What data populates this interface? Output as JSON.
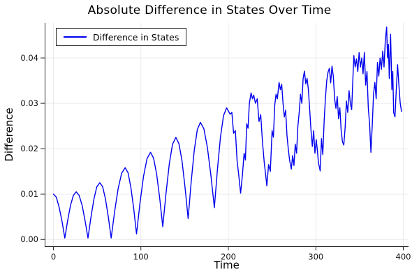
{
  "chart": {
    "title": "Absolute Difference in States Over Time",
    "legend": {
      "items": [
        {
          "label": "Difference in States",
          "color": "#0000ee"
        }
      ]
    }
  },
  "chart_data": {
    "type": "line",
    "title": "Absolute Difference in States Over Time",
    "xlabel": "Time",
    "ylabel": "Difference",
    "xlim": [
      -10,
      406
    ],
    "ylim": [
      -0.0015,
      0.0477
    ],
    "grid": true,
    "legend_position": "top-left",
    "xticks": {
      "values": [
        0,
        100,
        200,
        300,
        400
      ],
      "labels": [
        "0",
        "100",
        "200",
        "300",
        "400"
      ]
    },
    "yticks": {
      "values": [
        0,
        0.01,
        0.02,
        0.03,
        0.04
      ],
      "labels": [
        "0.00",
        "0.01",
        "0.02",
        "0.03",
        "0.04"
      ]
    },
    "series": [
      {
        "name": "Difference in States",
        "color": "#0000ee",
        "points": [
          [
            0,
            0.01
          ],
          [
            3.3,
            0.0093
          ],
          [
            6.5,
            0.0071
          ],
          [
            9.8,
            0.004
          ],
          [
            13,
            0.0003
          ],
          [
            16.3,
            0.0042
          ],
          [
            19.5,
            0.0075
          ],
          [
            22.8,
            0.0097
          ],
          [
            26,
            0.0105
          ],
          [
            29.4,
            0.0097
          ],
          [
            32.8,
            0.0075
          ],
          [
            36.1,
            0.0042
          ],
          [
            39.5,
            0.0003
          ],
          [
            42.9,
            0.0049
          ],
          [
            46.3,
            0.0089
          ],
          [
            49.6,
            0.0116
          ],
          [
            53,
            0.0125
          ],
          [
            56.3,
            0.0116
          ],
          [
            59.5,
            0.0089
          ],
          [
            62.8,
            0.0049
          ],
          [
            66,
            0.0003
          ],
          [
            70,
            0.0062
          ],
          [
            74,
            0.0112
          ],
          [
            78,
            0.0146
          ],
          [
            82,
            0.0158
          ],
          [
            85.3,
            0.0147
          ],
          [
            88.5,
            0.0115
          ],
          [
            91.8,
            0.0068
          ],
          [
            95,
            0.0012
          ],
          [
            99,
            0.0081
          ],
          [
            103,
            0.0139
          ],
          [
            107,
            0.0178
          ],
          [
            111,
            0.0192
          ],
          [
            114.5,
            0.0179
          ],
          [
            118,
            0.0144
          ],
          [
            121.5,
            0.0091
          ],
          [
            125,
            0.0028
          ],
          [
            128.8,
            0.0103
          ],
          [
            132.5,
            0.0167
          ],
          [
            136.2,
            0.021
          ],
          [
            140,
            0.0225
          ],
          [
            143.5,
            0.0211
          ],
          [
            147,
            0.0173
          ],
          [
            150.5,
            0.0114
          ],
          [
            154,
            0.0046
          ],
          [
            157.5,
            0.0127
          ],
          [
            161,
            0.0196
          ],
          [
            164.5,
            0.0242
          ],
          [
            168,
            0.0258
          ],
          [
            172,
            0.0244
          ],
          [
            176,
            0.0203
          ],
          [
            180,
            0.0142
          ],
          [
            184,
            0.007
          ],
          [
            187.5,
            0.0154
          ],
          [
            191,
            0.0226
          ],
          [
            194.5,
            0.0273
          ],
          [
            198,
            0.029
          ],
          [
            202,
            0.0276
          ],
          [
            204,
            0.028
          ],
          [
            206,
            0.0234
          ],
          [
            208,
            0.024
          ],
          [
            210,
            0.0173
          ],
          [
            212,
            0.014
          ],
          [
            214,
            0.0102
          ],
          [
            216,
            0.014
          ],
          [
            218,
            0.019
          ],
          [
            219.5,
            0.0175
          ],
          [
            221,
            0.0255
          ],
          [
            222.5,
            0.0245
          ],
          [
            224,
            0.03
          ],
          [
            226,
            0.0323
          ],
          [
            227.5,
            0.031
          ],
          [
            229,
            0.0318
          ],
          [
            231,
            0.03
          ],
          [
            233,
            0.031
          ],
          [
            235,
            0.026
          ],
          [
            237,
            0.0275
          ],
          [
            239,
            0.0215
          ],
          [
            241,
            0.017
          ],
          [
            242.5,
            0.0145
          ],
          [
            244,
            0.0118
          ],
          [
            246,
            0.0165
          ],
          [
            248,
            0.015
          ],
          [
            250,
            0.024
          ],
          [
            251.5,
            0.0225
          ],
          [
            253,
            0.0295
          ],
          [
            254.5,
            0.032
          ],
          [
            256,
            0.031
          ],
          [
            258,
            0.0346
          ],
          [
            259.5,
            0.033
          ],
          [
            261,
            0.0342
          ],
          [
            262.5,
            0.03
          ],
          [
            264,
            0.027
          ],
          [
            265.5,
            0.0285
          ],
          [
            267,
            0.023
          ],
          [
            268.5,
            0.02
          ],
          [
            270,
            0.0175
          ],
          [
            272,
            0.0155
          ],
          [
            273.5,
            0.0185
          ],
          [
            275,
            0.0163
          ],
          [
            276.5,
            0.021
          ],
          [
            278,
            0.019
          ],
          [
            279.5,
            0.025
          ],
          [
            281,
            0.028
          ],
          [
            282.5,
            0.032
          ],
          [
            284,
            0.03
          ],
          [
            285.5,
            0.0355
          ],
          [
            287,
            0.0371
          ],
          [
            288.5,
            0.0343
          ],
          [
            290,
            0.0355
          ],
          [
            291.5,
            0.033
          ],
          [
            293,
            0.0286
          ],
          [
            294.5,
            0.024
          ],
          [
            296,
            0.0205
          ],
          [
            297.5,
            0.024
          ],
          [
            299,
            0.019
          ],
          [
            300.5,
            0.022
          ],
          [
            302,
            0.0192
          ],
          [
            303,
            0.0169
          ],
          [
            305,
            0.0151
          ],
          [
            306.5,
            0.0222
          ],
          [
            308,
            0.0187
          ],
          [
            309.5,
            0.026
          ],
          [
            311,
            0.0312
          ],
          [
            312.5,
            0.035
          ],
          [
            314,
            0.0369
          ],
          [
            315.5,
            0.0377
          ],
          [
            317,
            0.0345
          ],
          [
            318.5,
            0.0382
          ],
          [
            320,
            0.036
          ],
          [
            321.5,
            0.031
          ],
          [
            323,
            0.0289
          ],
          [
            324.5,
            0.0315
          ],
          [
            326,
            0.0266
          ],
          [
            327.5,
            0.029
          ],
          [
            329,
            0.024
          ],
          [
            330.5,
            0.0215
          ],
          [
            332,
            0.0208
          ],
          [
            333.5,
            0.0246
          ],
          [
            335,
            0.0305
          ],
          [
            336.5,
            0.028
          ],
          [
            338,
            0.0328
          ],
          [
            339.5,
            0.03
          ],
          [
            341,
            0.0286
          ],
          [
            342.5,
            0.036
          ],
          [
            343.5,
            0.0405
          ],
          [
            345,
            0.038
          ],
          [
            346.5,
            0.0398
          ],
          [
            348,
            0.037
          ],
          [
            349.5,
            0.0412
          ],
          [
            351,
            0.038
          ],
          [
            352.5,
            0.04
          ],
          [
            354,
            0.0365
          ],
          [
            355.5,
            0.0412
          ],
          [
            357,
            0.034
          ],
          [
            358.5,
            0.037
          ],
          [
            360,
            0.029
          ],
          [
            361.5,
            0.0254
          ],
          [
            363,
            0.0192
          ],
          [
            364.5,
            0.0251
          ],
          [
            366,
            0.032
          ],
          [
            367.5,
            0.0346
          ],
          [
            369,
            0.031
          ],
          [
            370.5,
            0.039
          ],
          [
            372,
            0.036
          ],
          [
            373.5,
            0.04
          ],
          [
            375,
            0.0375
          ],
          [
            376.5,
            0.0415
          ],
          [
            378,
            0.038
          ],
          [
            379.5,
            0.044
          ],
          [
            381,
            0.0468
          ],
          [
            382,
            0.04
          ],
          [
            383,
            0.043
          ],
          [
            384,
            0.0355
          ],
          [
            385.5,
            0.0452
          ],
          [
            387,
            0.033
          ],
          [
            388,
            0.037
          ],
          [
            389,
            0.028
          ],
          [
            390.5,
            0.027
          ],
          [
            392,
            0.033
          ],
          [
            393.5,
            0.0385
          ],
          [
            395,
            0.034
          ],
          [
            396.5,
            0.03
          ],
          [
            398,
            0.0282
          ]
        ]
      }
    ]
  },
  "style": {
    "line_color": "#0000ee",
    "grid_color": "#ebebeb",
    "spine_color": "#2a2a2a",
    "tick_label_color": "#111111",
    "background": "#ffffff"
  }
}
